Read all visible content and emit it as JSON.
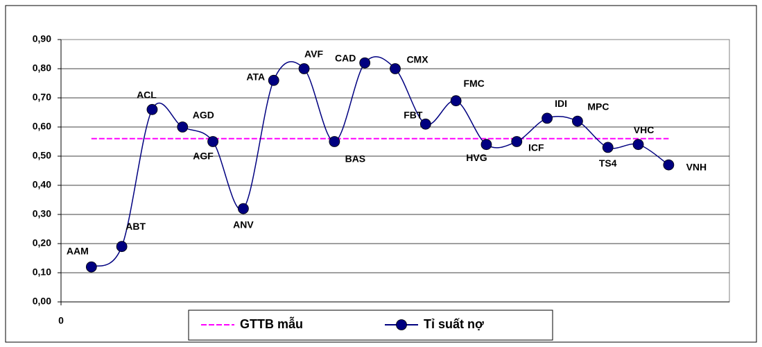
{
  "chart_data": {
    "type": "line",
    "x": [
      1,
      2,
      3,
      4,
      5,
      6,
      7,
      8,
      9,
      10,
      11,
      12,
      13,
      14,
      15,
      16,
      17,
      18,
      19,
      20
    ],
    "labels": [
      "AAM",
      "ABT",
      "ACL",
      "AGD",
      "AGF",
      "ANV",
      "ATA",
      "AVF",
      "BAS",
      "CAD",
      "CMX",
      "FBT",
      "FMC",
      "HVG",
      "ICF",
      "IDI",
      "MPC",
      "TS4",
      "VHC",
      "VNH"
    ],
    "series": [
      {
        "name": "GTTB mẫu",
        "color": "#ff00ff",
        "dashed": true,
        "markers": false,
        "values": [
          0.56,
          0.56,
          0.56,
          0.56,
          0.56,
          0.56,
          0.56,
          0.56,
          0.56,
          0.56,
          0.56,
          0.56,
          0.56,
          0.56,
          0.56,
          0.56,
          0.56,
          0.56,
          0.56,
          0.56
        ]
      },
      {
        "name": "Tỉ suất nợ",
        "color": "#000080",
        "dashed": false,
        "markers": true,
        "smooth": true,
        "values": [
          0.12,
          0.19,
          0.66,
          0.6,
          0.55,
          0.32,
          0.76,
          0.8,
          0.55,
          0.82,
          0.8,
          0.61,
          0.69,
          0.54,
          0.55,
          0.63,
          0.62,
          0.53,
          0.54,
          0.47
        ]
      }
    ],
    "xlim": [
      0,
      22
    ],
    "xticks": [
      0
    ],
    "ylim": [
      0,
      0.9
    ],
    "yticks": [
      {
        "value": 0,
        "label": "0,00"
      },
      {
        "value": 0.1,
        "label": "0,10"
      },
      {
        "value": 0.2,
        "label": "0,20"
      },
      {
        "value": 0.3,
        "label": "0,30"
      },
      {
        "value": 0.4,
        "label": "0,40"
      },
      {
        "value": 0.5,
        "label": "0,50"
      },
      {
        "value": 0.6,
        "label": "0,60"
      },
      {
        "value": 0.7,
        "label": "0,70"
      },
      {
        "value": 0.8,
        "label": "0,80"
      },
      {
        "value": 0.9,
        "label": "0,90"
      }
    ],
    "grid": true
  }
}
